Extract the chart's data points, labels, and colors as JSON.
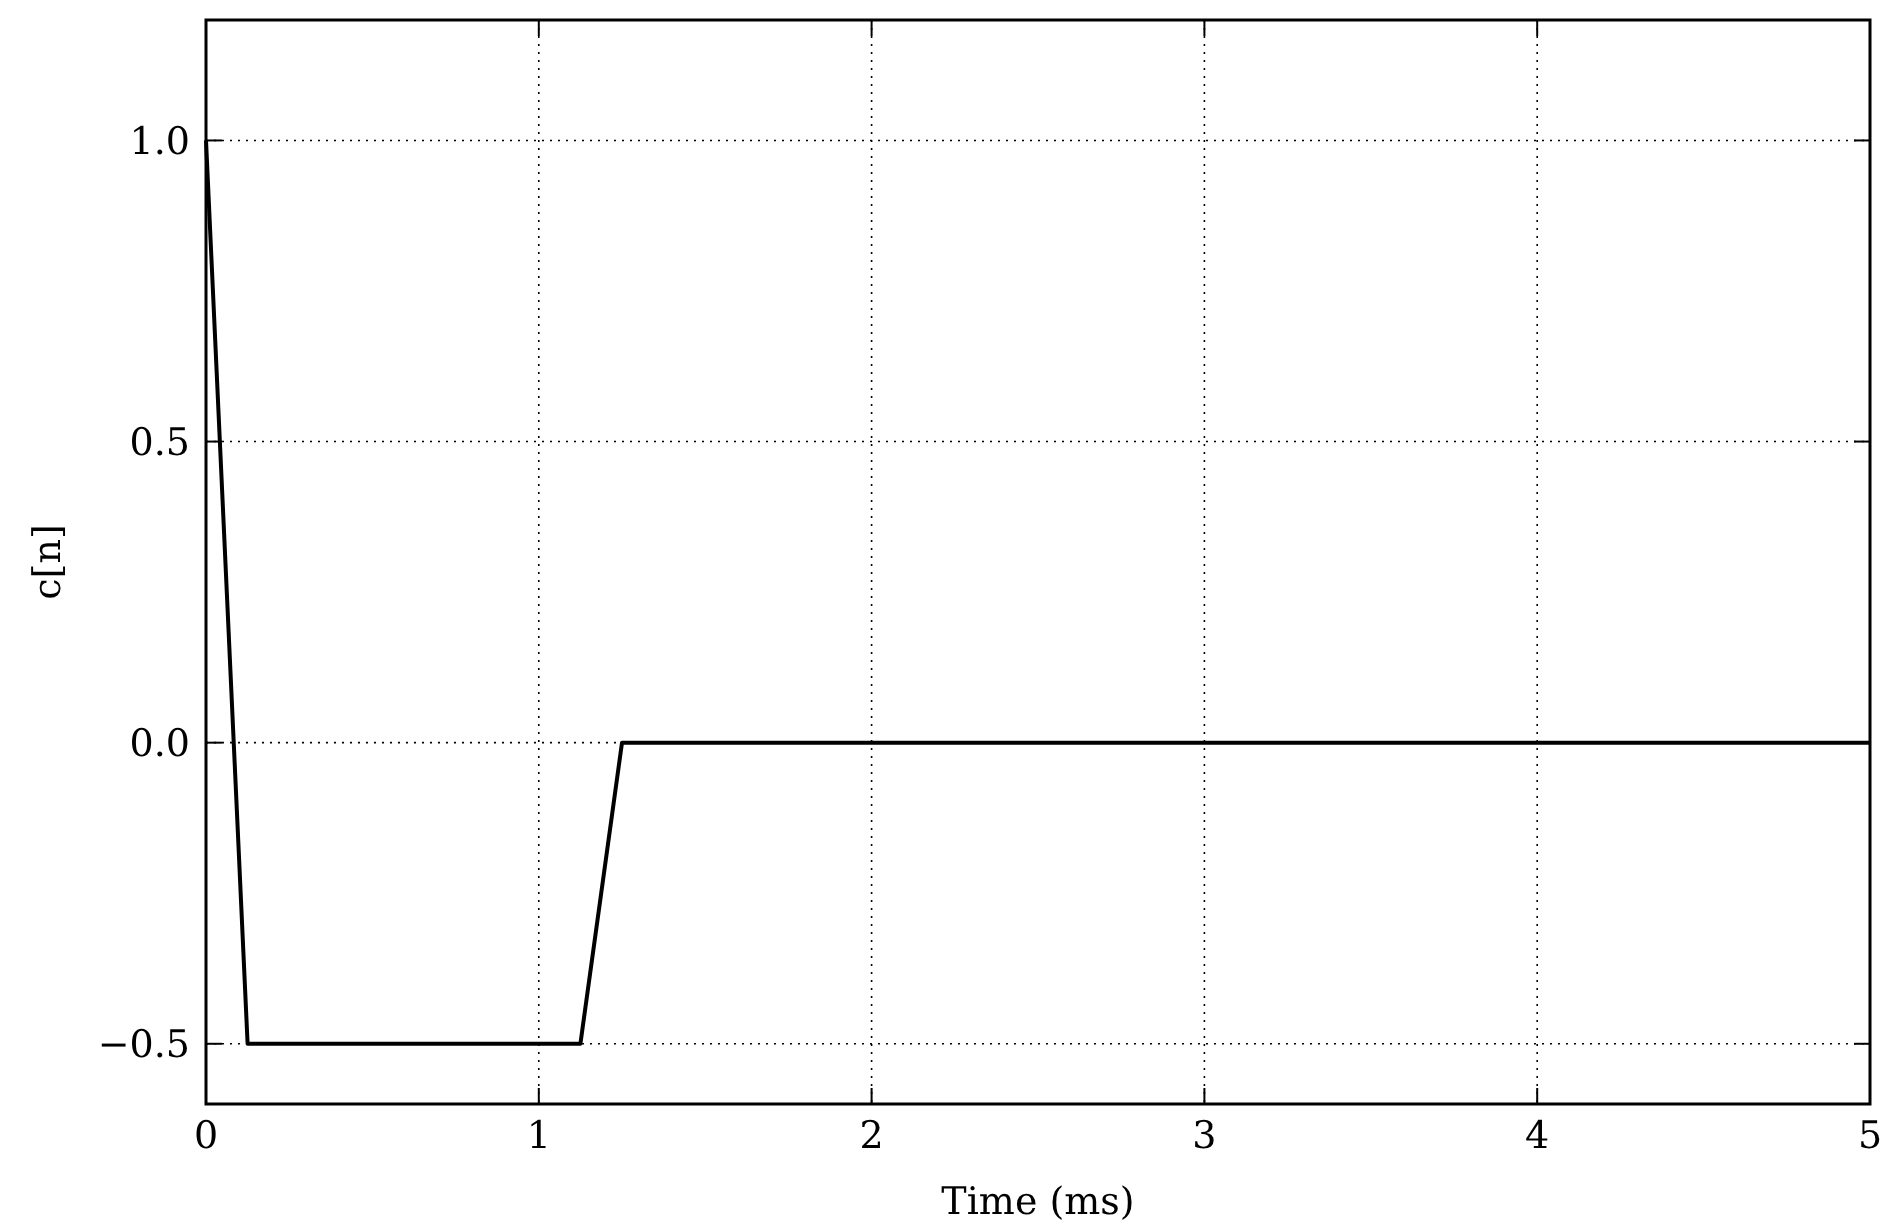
{
  "chart_data": {
    "type": "line",
    "xlabel": "Time (ms)",
    "ylabel": "c[n]",
    "x": [
      0,
      0.125,
      1.125,
      1.25,
      5
    ],
    "series": [
      {
        "color": "#000000",
        "values": [
          1.0,
          -0.5,
          -0.5,
          0,
          0
        ]
      }
    ],
    "xlim": [
      0,
      5
    ],
    "xticks": [
      0,
      1,
      2,
      3,
      4,
      5
    ],
    "ylim": [
      -0.6,
      1.2
    ],
    "yticks": [
      {
        "value": -0.5,
        "label": "−0.5"
      },
      {
        "value": 0,
        "label": "0.0"
      },
      {
        "value": 0.5,
        "label": "0.5"
      },
      {
        "value": 1,
        "label": "1.0"
      }
    ],
    "grid": true,
    "marker": "none",
    "line_style": "solid"
  }
}
